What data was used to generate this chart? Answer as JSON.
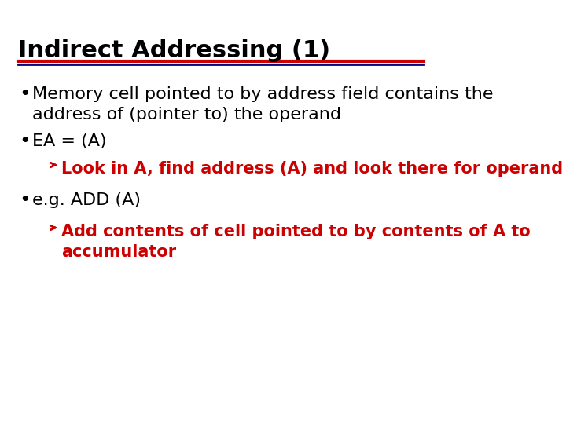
{
  "title": "Indirect Addressing (1)",
  "title_color": "#000000",
  "title_fontsize": 22,
  "title_bold": true,
  "bg_color": "#ffffff",
  "line1_color": "#cc0000",
  "line2_color": "#000080",
  "bullet_color": "#000000",
  "bullet_text_color": "#000000",
  "arrow_color": "#cc0000",
  "sub_text_color": "#cc0000",
  "bullets": [
    {
      "text": "Memory cell pointed to by address field contains the\naddress of (pointer to) the operand",
      "indent": 0,
      "bold": false,
      "color": "#000000",
      "fontsize": 16
    },
    {
      "text": "EA = (A)",
      "indent": 0,
      "bold": false,
      "color": "#000000",
      "fontsize": 16
    },
    {
      "text": "Look in A, find address (A) and look there for operand",
      "indent": 1,
      "bold": true,
      "color": "#cc0000",
      "fontsize": 15
    },
    {
      "text": "e.g. ADD (A)",
      "indent": 0,
      "bold": false,
      "color": "#000000",
      "fontsize": 16
    },
    {
      "text": "Add contents of cell pointed to by contents of A to\naccumulator",
      "indent": 1,
      "bold": true,
      "color": "#cc0000",
      "fontsize": 15
    }
  ]
}
